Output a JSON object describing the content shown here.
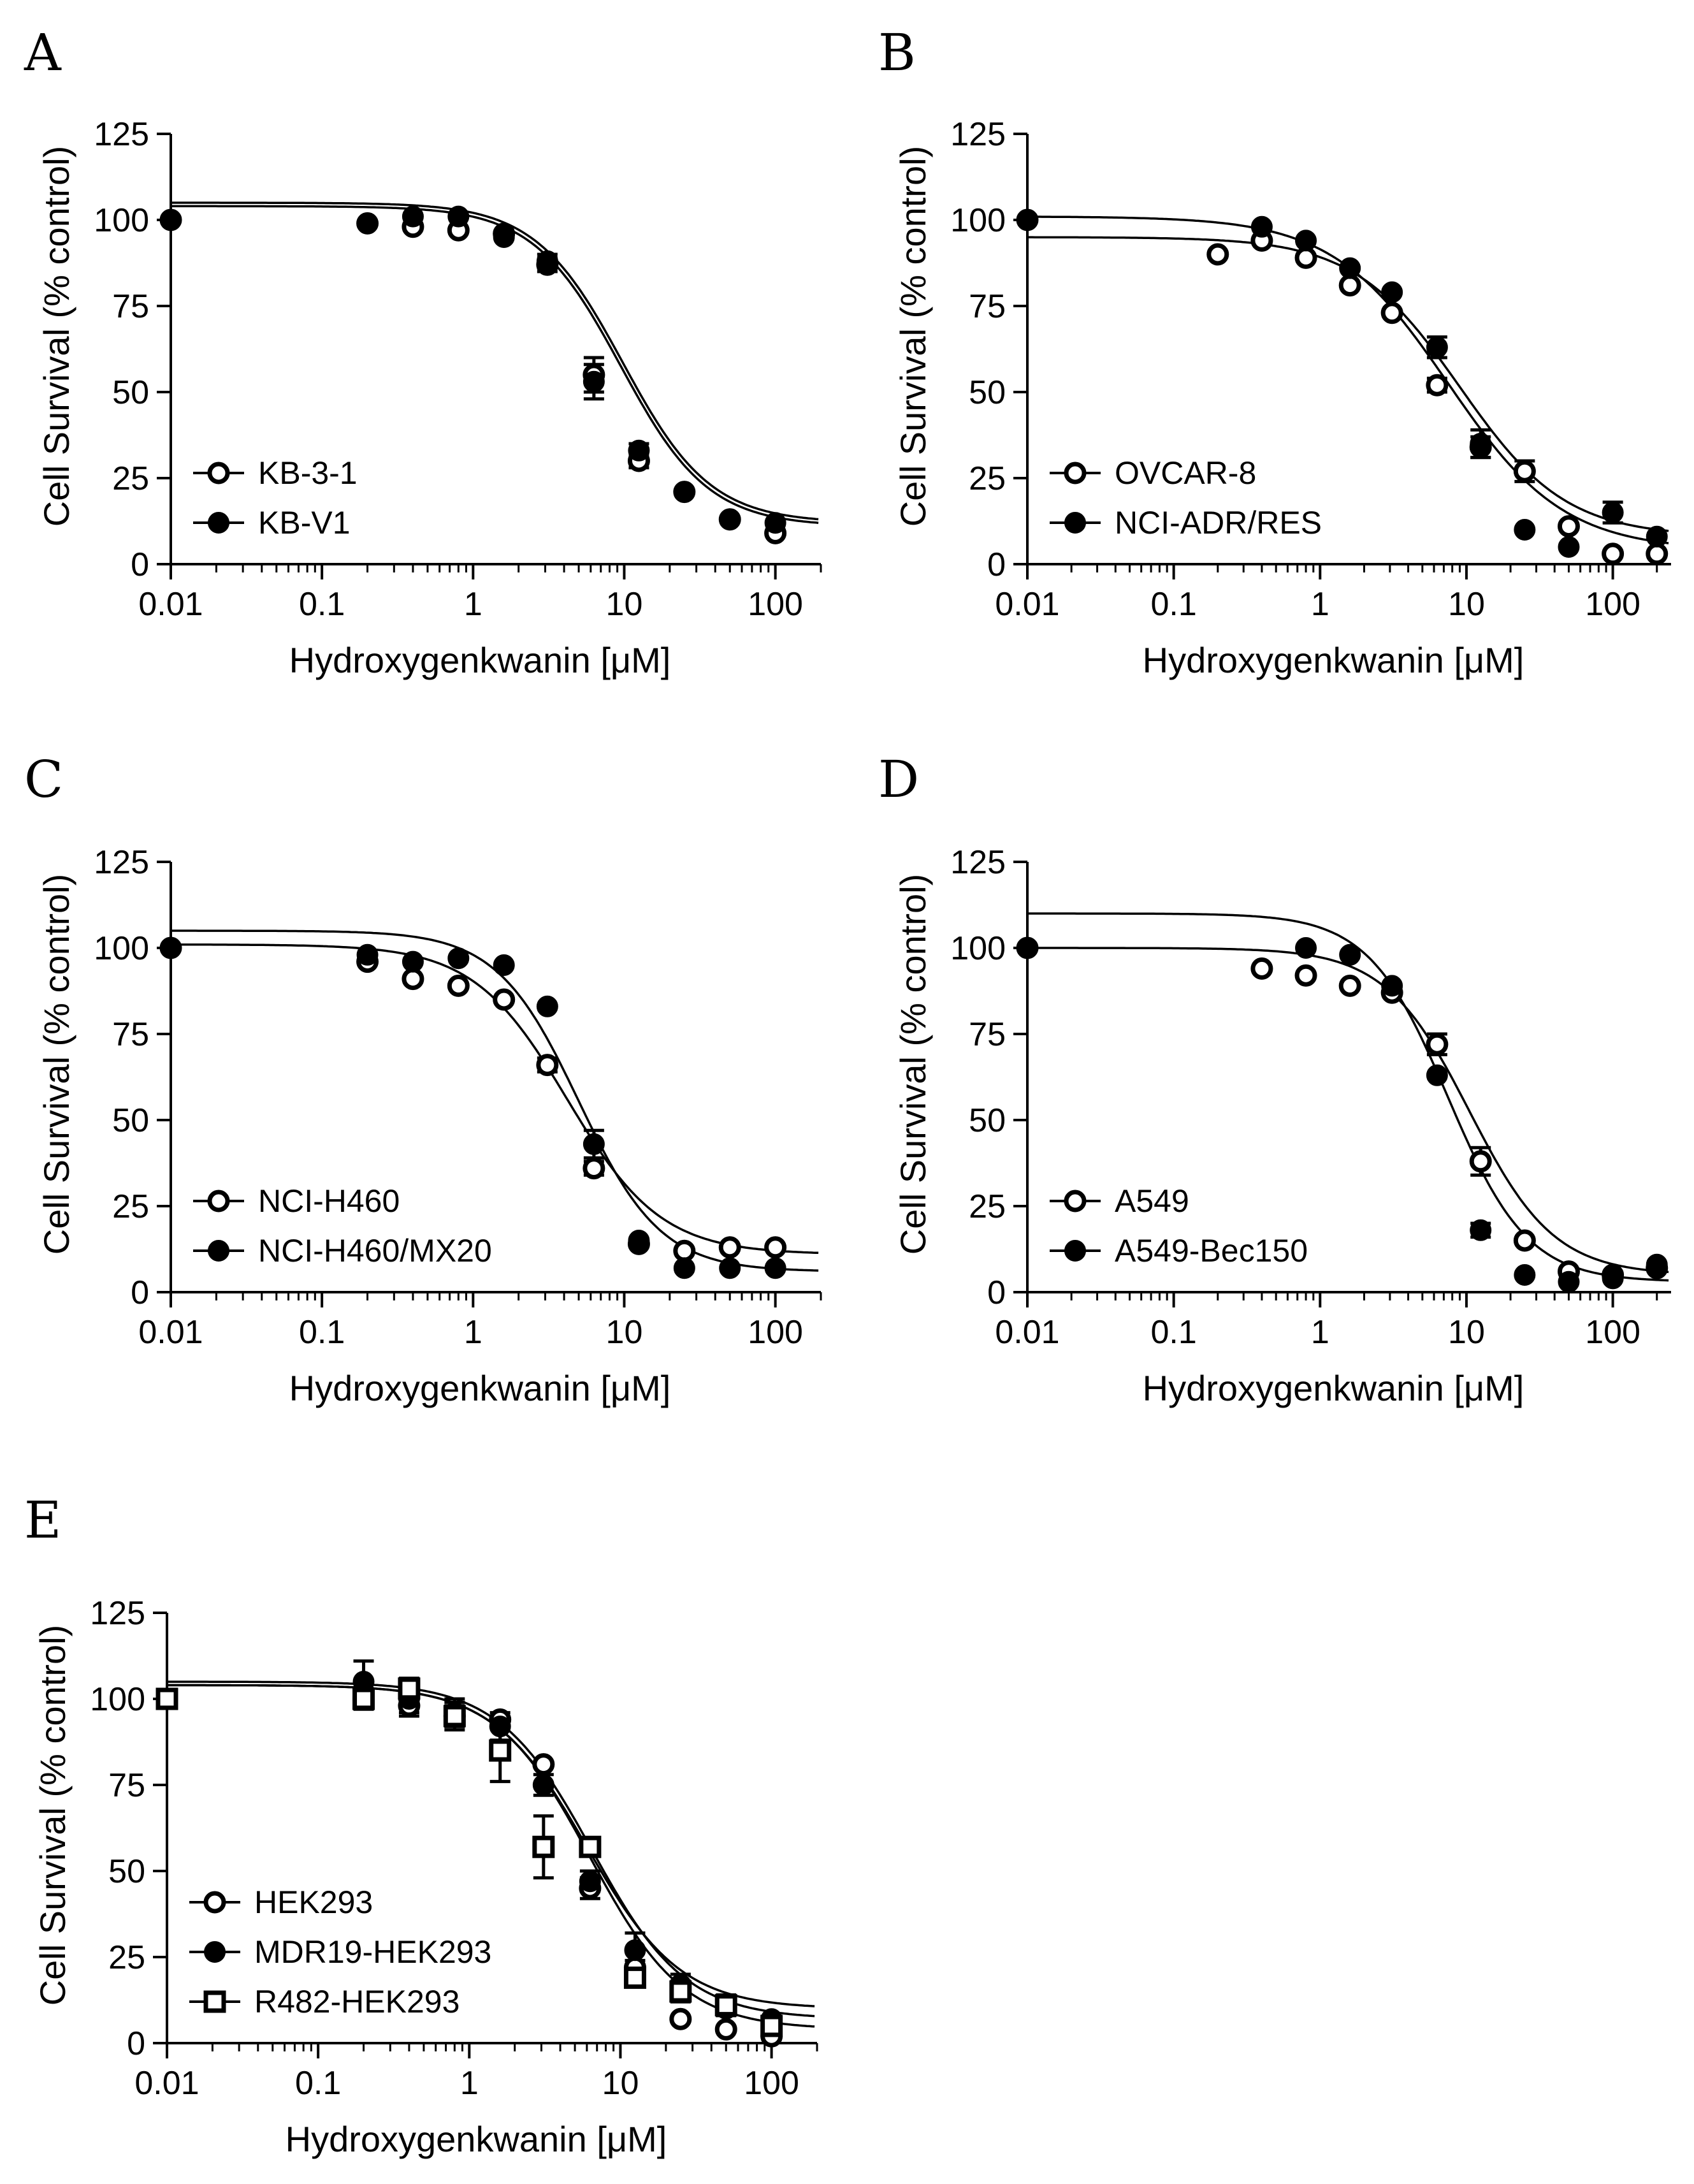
{
  "figure": {
    "colors": {
      "ink": "#000000",
      "background": "#ffffff"
    }
  },
  "chart_data": [
    {
      "type": "scatter",
      "panel": "A",
      "xscale": "log",
      "xlim": [
        0.01,
        200
      ],
      "ylim": [
        0,
        125
      ],
      "xticks": [
        0.01,
        0.1,
        1,
        10,
        100
      ],
      "xticklabels": [
        "0.01",
        "0.1",
        "1",
        "10",
        "100"
      ],
      "yticks": [
        0,
        25,
        50,
        75,
        100,
        125
      ],
      "yticklabels": [
        "0",
        "25",
        "50",
        "75",
        "100",
        "125"
      ],
      "xlabel": "Hydroxygenkwanin [μM]",
      "ylabel": "Cell Survival (% control)",
      "legend_position": "bottom-left",
      "series": [
        {
          "name": "KB-3-1",
          "marker": "open-circle",
          "x": [
            0.01,
            0.2,
            0.4,
            0.8,
            1.6,
            3.1,
            6.3,
            12.5,
            25,
            50,
            100
          ],
          "y": [
            100,
            99,
            98,
            97,
            96,
            87,
            55,
            30,
            21,
            13,
            9
          ],
          "err": [
            0,
            0,
            0,
            0,
            0,
            2,
            5,
            2,
            0,
            0,
            0
          ],
          "fit": {
            "top": 104,
            "bottom": 11,
            "ic50": 9.5,
            "hill": 1.5
          }
        },
        {
          "name": "KB-V1",
          "marker": "filled-circle",
          "x": [
            0.01,
            0.2,
            0.4,
            0.8,
            1.6,
            3.1,
            6.3,
            12.5,
            25,
            50,
            100
          ],
          "y": [
            100,
            99,
            101,
            101,
            95,
            88,
            53,
            33,
            21,
            13,
            12
          ],
          "err": [
            0,
            0,
            0,
            0,
            0,
            2,
            5,
            2,
            0,
            0,
            0
          ],
          "fit": {
            "top": 105,
            "bottom": 12,
            "ic50": 9.8,
            "hill": 1.5
          }
        }
      ]
    },
    {
      "type": "scatter",
      "panel": "B",
      "xscale": "log",
      "xlim": [
        0.01,
        250
      ],
      "ylim": [
        0,
        125
      ],
      "xticks": [
        0.01,
        0.1,
        1,
        10,
        100
      ],
      "xticklabels": [
        "0.01",
        "0.1",
        "1",
        "10",
        "100"
      ],
      "yticks": [
        0,
        25,
        50,
        75,
        100,
        125
      ],
      "yticklabels": [
        "0",
        "25",
        "50",
        "75",
        "100",
        "125"
      ],
      "xlabel": "Hydroxygenkwanin [μM]",
      "ylabel": "Cell Survival (% control)",
      "legend_position": "bottom-left",
      "series": [
        {
          "name": "OVCAR-8",
          "marker": "open-circle",
          "x": [
            0.01,
            0.2,
            0.4,
            0.8,
            1.6,
            3.1,
            6.3,
            12.5,
            25,
            50,
            100,
            200
          ],
          "y": [
            100,
            90,
            94,
            89,
            81,
            73,
            52,
            34,
            27,
            11,
            3,
            3
          ],
          "err": [
            0,
            0,
            0,
            0,
            0,
            0,
            2,
            3,
            3,
            0,
            0,
            0
          ],
          "fit": {
            "top": 101,
            "bottom": 4,
            "ic50": 7.5,
            "hill": 1.1
          }
        },
        {
          "name": "NCI-ADR/RES",
          "marker": "filled-circle",
          "x": [
            0.01,
            0.4,
            0.8,
            1.6,
            3.1,
            6.3,
            12.5,
            25,
            50,
            100,
            200
          ],
          "y": [
            100,
            98,
            94,
            86,
            79,
            63,
            35,
            10,
            5,
            15,
            8
          ],
          "err": [
            0,
            0,
            0,
            0,
            0,
            3,
            4,
            0,
            0,
            3,
            0
          ],
          "fit": {
            "top": 95,
            "bottom": 8,
            "ic50": 9.0,
            "hill": 1.2
          }
        }
      ]
    },
    {
      "type": "scatter",
      "panel": "C",
      "xscale": "log",
      "xlim": [
        0.01,
        200
      ],
      "ylim": [
        0,
        125
      ],
      "xticks": [
        0.01,
        0.1,
        1,
        10,
        100
      ],
      "xticklabels": [
        "0.01",
        "0.1",
        "1",
        "10",
        "100"
      ],
      "yticks": [
        0,
        25,
        50,
        75,
        100,
        125
      ],
      "yticklabels": [
        "0",
        "25",
        "50",
        "75",
        "100",
        "125"
      ],
      "xlabel": "Hydroxygenkwanin [μM]",
      "ylabel": "Cell Survival (% control)",
      "legend_position": "bottom-left",
      "series": [
        {
          "name": "NCI-H460",
          "marker": "open-circle",
          "x": [
            0.01,
            0.2,
            0.4,
            0.8,
            1.6,
            3.1,
            6.3,
            12.5,
            25,
            50,
            100
          ],
          "y": [
            100,
            96,
            91,
            89,
            85,
            66,
            36,
            14,
            12,
            13,
            13
          ],
          "err": [
            0,
            0,
            0,
            0,
            0,
            2,
            2,
            0,
            0,
            0,
            0
          ],
          "fit": {
            "top": 101,
            "bottom": 11,
            "ic50": 4.2,
            "hill": 1.4
          }
        },
        {
          "name": "NCI-H460/MX20",
          "marker": "filled-circle",
          "x": [
            0.01,
            0.2,
            0.4,
            0.8,
            1.6,
            3.1,
            6.3,
            12.5,
            25,
            50,
            100
          ],
          "y": [
            100,
            98,
            96,
            97,
            95,
            83,
            43,
            15,
            7,
            7,
            7
          ],
          "err": [
            0,
            0,
            0,
            0,
            0,
            0,
            4,
            0,
            0,
            0,
            0
          ],
          "fit": {
            "top": 105,
            "bottom": 6,
            "ic50": 5.0,
            "hill": 1.6
          }
        }
      ]
    },
    {
      "type": "scatter",
      "panel": "D",
      "xscale": "log",
      "xlim": [
        0.01,
        250
      ],
      "ylim": [
        0,
        125
      ],
      "xticks": [
        0.01,
        0.1,
        1,
        10,
        100
      ],
      "xticklabels": [
        "0.01",
        "0.1",
        "1",
        "10",
        "100"
      ],
      "yticks": [
        0,
        25,
        50,
        75,
        100,
        125
      ],
      "yticklabels": [
        "0",
        "25",
        "50",
        "75",
        "100",
        "125"
      ],
      "xlabel": "Hydroxygenkwanin [μM]",
      "ylabel": "Cell Survival (% control)",
      "legend_position": "bottom-left",
      "series": [
        {
          "name": "A549",
          "marker": "open-circle",
          "x": [
            0.01,
            0.4,
            0.8,
            1.6,
            3.1,
            6.3,
            12.5,
            25,
            50,
            100,
            200
          ],
          "y": [
            100,
            94,
            92,
            89,
            87,
            72,
            38,
            15,
            6,
            5,
            7
          ],
          "err": [
            0,
            0,
            0,
            0,
            0,
            3,
            4,
            0,
            0,
            0,
            0
          ],
          "fit": {
            "top": 100,
            "bottom": 5,
            "ic50": 10.5,
            "hill": 1.5
          }
        },
        {
          "name": "A549-Bec150",
          "marker": "filled-circle",
          "x": [
            0.01,
            0.8,
            1.6,
            3.1,
            6.3,
            12.5,
            25,
            50,
            100,
            200
          ],
          "y": [
            100,
            100,
            98,
            89,
            63,
            18,
            5,
            3,
            4,
            8
          ],
          "err": [
            0,
            0,
            0,
            0,
            0,
            2,
            0,
            0,
            0,
            0
          ],
          "fit": {
            "top": 110,
            "bottom": 3,
            "ic50": 7.5,
            "hill": 1.6
          }
        }
      ]
    },
    {
      "type": "scatter",
      "panel": "E",
      "xscale": "log",
      "xlim": [
        0.01,
        200
      ],
      "ylim": [
        0,
        125
      ],
      "xticks": [
        0.01,
        0.1,
        1,
        10,
        100
      ],
      "xticklabels": [
        "0.01",
        "0.1",
        "1",
        "10",
        "100"
      ],
      "yticks": [
        0,
        25,
        50,
        75,
        100,
        125
      ],
      "yticklabels": [
        "0",
        "25",
        "50",
        "75",
        "100",
        "125"
      ],
      "xlabel": "Hydroxygenkwanin [μM]",
      "ylabel": "Cell Survival (% control)",
      "legend_position": "bottom-left",
      "series": [
        {
          "name": "HEK293",
          "marker": "open-circle",
          "x": [
            0.01,
            0.2,
            0.4,
            0.8,
            1.6,
            3.1,
            6.3,
            12.5,
            25,
            50,
            100
          ],
          "y": [
            100,
            100,
            98,
            95,
            94,
            81,
            45,
            22,
            7,
            4,
            2
          ],
          "err": [
            0,
            0,
            3,
            3,
            0,
            0,
            3,
            2,
            0,
            0,
            0
          ],
          "fit": {
            "top": 104,
            "bottom": 4,
            "ic50": 6.3,
            "hill": 1.4
          }
        },
        {
          "name": "MDR19-HEK293",
          "marker": "filled-circle",
          "x": [
            0.01,
            0.2,
            0.4,
            0.8,
            1.6,
            3.1,
            6.3,
            12.5,
            25,
            50,
            100
          ],
          "y": [
            100,
            105,
            100,
            96,
            92,
            75,
            47,
            27,
            17,
            10,
            7
          ],
          "err": [
            0,
            6,
            4,
            4,
            4,
            3,
            3,
            5,
            3,
            2,
            0
          ],
          "fit": {
            "top": 105,
            "bottom": 7,
            "ic50": 6.5,
            "hill": 1.4
          }
        },
        {
          "name": "R482-HEK293",
          "marker": "open-square",
          "x": [
            0.01,
            0.2,
            0.4,
            0.8,
            1.6,
            3.1,
            6.3,
            12.5,
            25,
            50,
            100
          ],
          "y": [
            100,
            100,
            103,
            95,
            85,
            57,
            57,
            19,
            15,
            11,
            5
          ],
          "err": [
            0,
            3,
            3,
            4,
            9,
            9,
            2,
            2,
            3,
            3,
            0
          ],
          "fit": {
            "top": 104,
            "bottom": 10,
            "ic50": 6.0,
            "hill": 1.4
          }
        }
      ]
    }
  ]
}
